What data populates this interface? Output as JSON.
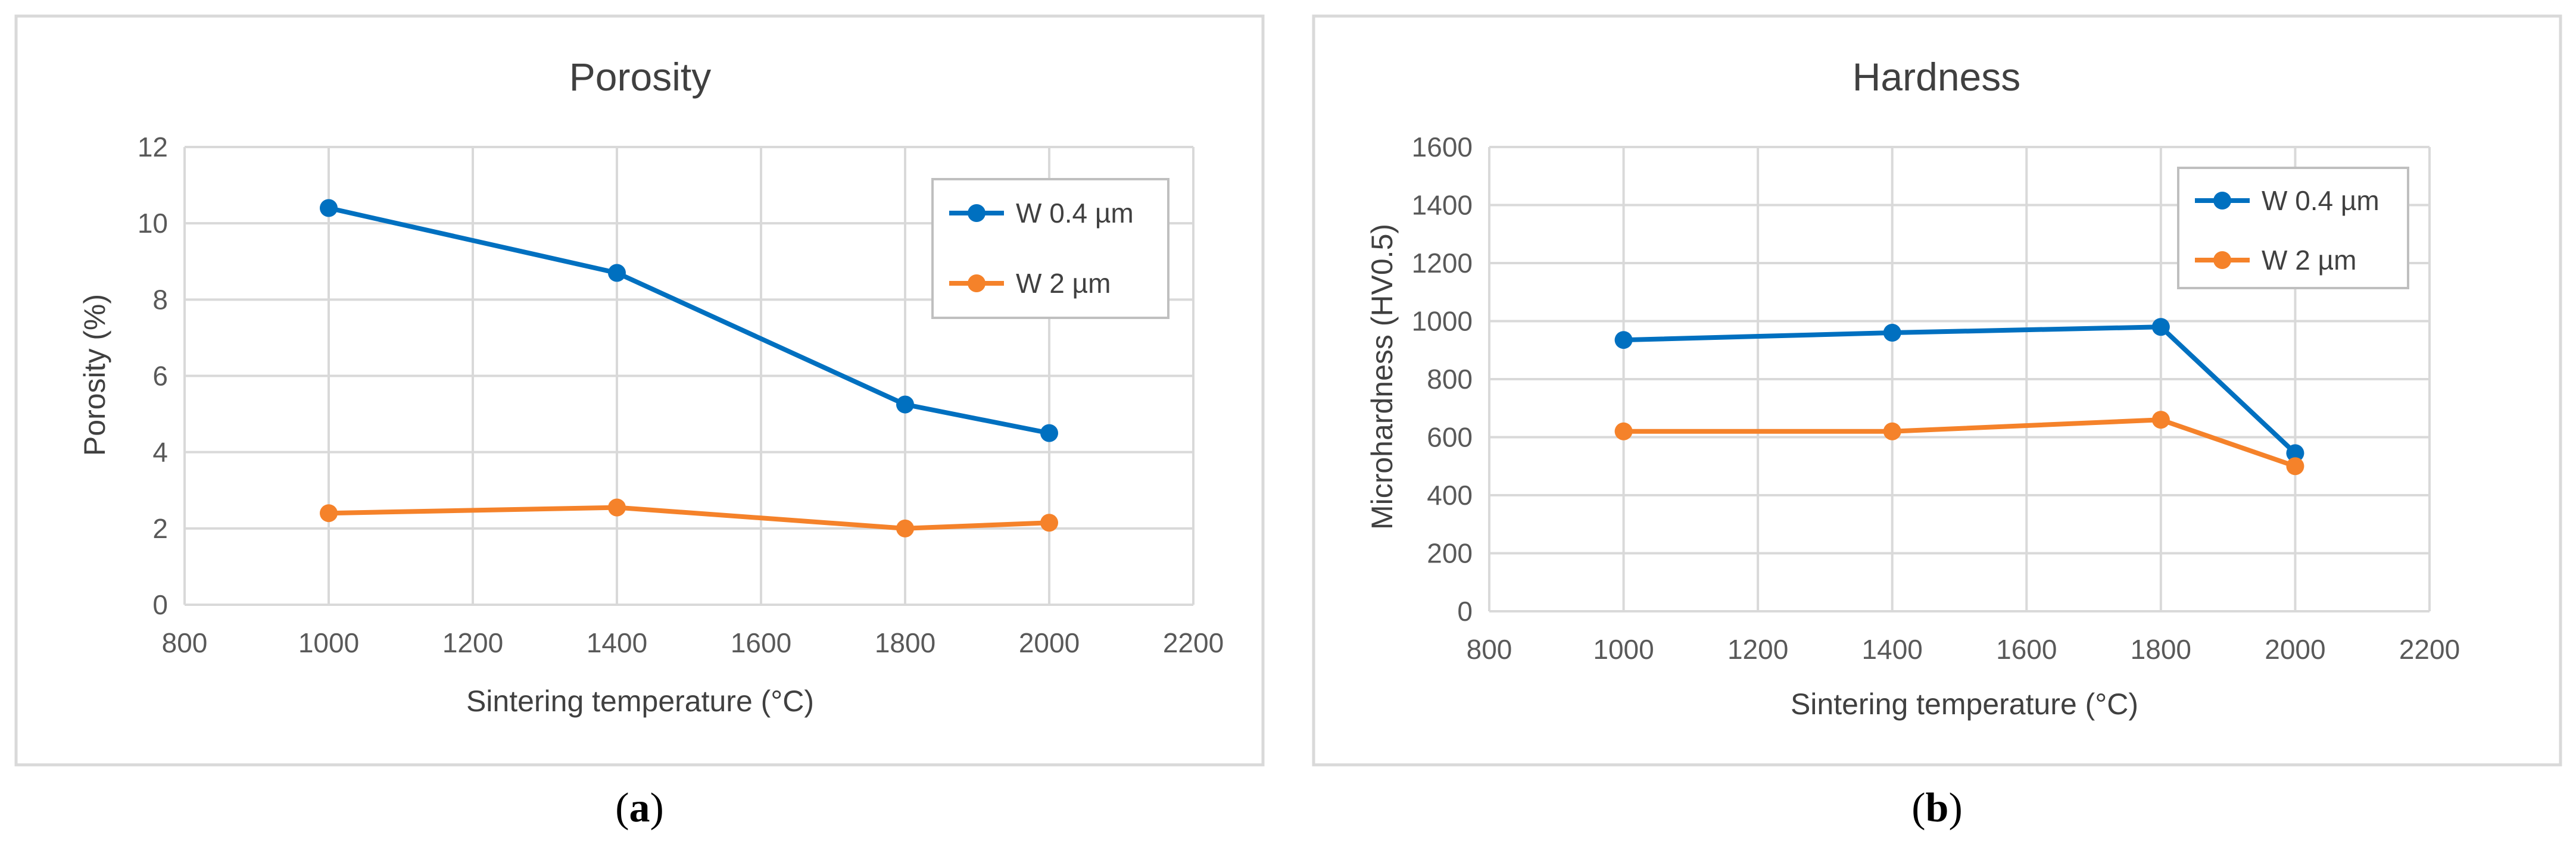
{
  "chart_data": [
    {
      "type": "line",
      "title": "Porosity",
      "xlabel": "Sintering temperature (°C)",
      "ylabel": "Porosity (%)",
      "xlim": [
        800,
        2200
      ],
      "ylim": [
        0,
        12
      ],
      "xticks": [
        "800",
        "1000",
        "1200",
        "1400",
        "1600",
        "1800",
        "2000",
        "2200"
      ],
      "yticks": [
        "0",
        "2",
        "4",
        "6",
        "8",
        "10",
        "12"
      ],
      "grid": true,
      "legend_position": "top-right",
      "caption_letter": "a",
      "x": [
        1000,
        1400,
        1800,
        2000
      ],
      "series": [
        {
          "name": "W 0.4 µm",
          "color": "#0070c0",
          "values": [
            10.4,
            8.7,
            5.25,
            4.5
          ]
        },
        {
          "name": "W 2 µm",
          "color": "#f5822a",
          "values": [
            2.4,
            2.55,
            2.0,
            2.15
          ]
        }
      ]
    },
    {
      "type": "line",
      "title": "Hardness",
      "xlabel": "Sintering temperature (°C)",
      "ylabel": "Microhardness (HV0.5)",
      "xlim": [
        800,
        2200
      ],
      "ylim": [
        0,
        1600
      ],
      "xticks": [
        "800",
        "1000",
        "1200",
        "1400",
        "1600",
        "1800",
        "2000",
        "2200"
      ],
      "yticks": [
        "0",
        "200",
        "400",
        "600",
        "800",
        "1000",
        "1200",
        "1400",
        "1600"
      ],
      "grid": true,
      "legend_position": "top-right",
      "caption_letter": "b",
      "x": [
        1000,
        1400,
        1800,
        2000
      ],
      "series": [
        {
          "name": "W 0.4 µm",
          "color": "#0070c0",
          "values": [
            935,
            960,
            980,
            545
          ]
        },
        {
          "name": "W 2 µm",
          "color": "#f5822a",
          "values": [
            620,
            620,
            660,
            500
          ]
        }
      ]
    }
  ]
}
